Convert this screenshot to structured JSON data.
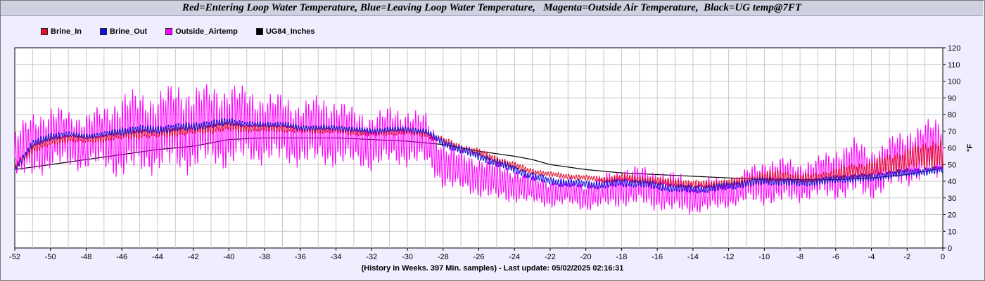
{
  "title": "Red=Entering Loop Water Temperature, Blue=Leaving Loop Water Temperature,   Magenta=Outside Air Temperature,  Black=UG temp@7FT",
  "footer": "(History in Weeks. 397 Min. samples) - Last update: 05/02/2025 02:16:31",
  "chart_data": {
    "type": "line",
    "xlim": [
      -52,
      0
    ],
    "ylim": [
      0,
      120
    ],
    "ylabel": "°F",
    "grid": true,
    "legend_position": "top-left",
    "x_ticks": [
      -52,
      -50,
      -48,
      -46,
      -44,
      -42,
      -40,
      -38,
      -36,
      -34,
      -32,
      -30,
      -28,
      -26,
      -24,
      -22,
      -20,
      -18,
      -16,
      -14,
      -12,
      -10,
      -8,
      -6,
      -4,
      -2,
      0
    ],
    "x_tick_labels": [
      "-52",
      "-50",
      "-48",
      "-46",
      "-44",
      "-42",
      "-40",
      "-38",
      "-36",
      "-34",
      "-32",
      "-30",
      "-28",
      "-26",
      "-24",
      "-22",
      "-20",
      "-18",
      "-16",
      "-14",
      "-12",
      "-10",
      "-8",
      "-6",
      "-4",
      "-2",
      "0"
    ],
    "y_ticks": [
      0,
      10,
      20,
      30,
      40,
      50,
      60,
      70,
      80,
      90,
      100,
      110,
      120
    ],
    "y_tick_labels": [
      "0",
      "10",
      "20",
      "30",
      "40",
      "50",
      "60",
      "70",
      "80",
      "90",
      "100",
      "110",
      "120"
    ],
    "series": [
      {
        "name": "Brine_In",
        "color": "#e0102a",
        "x": [
          -52,
          -51,
          -50,
          -49,
          -48,
          -47,
          -46,
          -45,
          -44,
          -43,
          -42,
          -41,
          -40,
          -39,
          -38,
          -37,
          -36,
          -35,
          -34,
          -33,
          -32,
          -31,
          -30,
          -29,
          -28,
          -27,
          -26,
          -25,
          -24,
          -23,
          -22,
          -21,
          -20,
          -19,
          -18,
          -17,
          -16,
          -15,
          -14,
          -13,
          -12,
          -11,
          -10,
          -9,
          -8,
          -7,
          -6,
          -5,
          -4,
          -3,
          -2,
          -1,
          0
        ],
        "values": [
          48,
          60,
          64,
          66,
          65,
          66,
          68,
          69,
          69,
          70,
          71,
          72,
          73,
          72,
          72,
          72,
          71,
          71,
          71,
          70,
          69,
          70,
          70,
          69,
          64,
          60,
          57,
          53,
          49,
          46,
          44,
          43,
          42,
          41,
          42,
          41,
          40,
          39,
          38,
          38,
          39,
          40,
          42,
          43,
          41,
          42,
          44,
          46,
          47,
          50,
          53,
          55,
          58
        ],
        "swing": [
          3,
          4,
          4,
          3,
          3,
          3,
          4,
          4,
          4,
          4,
          4,
          4,
          4,
          3,
          3,
          3,
          3,
          3,
          3,
          3,
          3,
          3,
          3,
          3,
          3,
          3,
          3,
          3,
          3,
          2,
          2,
          2,
          2,
          2,
          3,
          3,
          3,
          3,
          3,
          3,
          3,
          4,
          5,
          5,
          4,
          4,
          5,
          6,
          7,
          8,
          9,
          10,
          12
        ]
      },
      {
        "name": "Brine_Out",
        "color": "#1010e0",
        "x": [
          -52,
          -51,
          -50,
          -49,
          -48,
          -47,
          -46,
          -45,
          -44,
          -43,
          -42,
          -41,
          -40,
          -39,
          -38,
          -37,
          -36,
          -35,
          -34,
          -33,
          -32,
          -31,
          -30,
          -29,
          -28,
          -27,
          -26,
          -25,
          -24,
          -23,
          -22,
          -21,
          -20,
          -19,
          -18,
          -17,
          -16,
          -15,
          -14,
          -13,
          -12,
          -11,
          -10,
          -9,
          -8,
          -7,
          -6,
          -5,
          -4,
          -3,
          -2,
          -1,
          0
        ],
        "values": [
          47,
          62,
          67,
          68,
          67,
          68,
          70,
          71,
          71,
          72,
          73,
          74,
          76,
          74,
          74,
          74,
          72,
          72,
          72,
          71,
          70,
          71,
          71,
          70,
          63,
          59,
          55,
          51,
          47,
          43,
          40,
          39,
          38,
          38,
          39,
          39,
          37,
          36,
          35,
          36,
          37,
          39,
          40,
          40,
          39,
          40,
          41,
          42,
          42,
          44,
          45,
          46,
          47
        ],
        "swing": [
          2,
          3,
          3,
          2,
          2,
          2,
          3,
          3,
          3,
          3,
          3,
          3,
          3,
          2,
          2,
          2,
          2,
          2,
          2,
          2,
          2,
          2,
          2,
          2,
          3,
          3,
          3,
          3,
          3,
          3,
          3,
          3,
          3,
          3,
          3,
          3,
          3,
          3,
          3,
          3,
          3,
          3,
          3,
          3,
          3,
          3,
          3,
          3,
          3,
          3,
          3,
          3,
          3
        ]
      },
      {
        "name": "Outside_Airtemp",
        "color": "#ff00ff",
        "x": [
          -52,
          -51,
          -50,
          -49,
          -48,
          -47,
          -46,
          -45,
          -44,
          -43,
          -42,
          -41,
          -40,
          -39,
          -38,
          -37,
          -36,
          -35,
          -34,
          -33,
          -32,
          -31,
          -30,
          -29,
          -28,
          -27,
          -26,
          -25,
          -24,
          -23,
          -22,
          -21,
          -20,
          -19,
          -18,
          -17,
          -16,
          -15,
          -14,
          -13,
          -12,
          -11,
          -10,
          -9,
          -8,
          -7,
          -6,
          -5,
          -4,
          -3,
          -2,
          -1,
          0
        ],
        "values": [
          55,
          62,
          66,
          65,
          64,
          66,
          68,
          69,
          70,
          72,
          72,
          73,
          74,
          73,
          72,
          71,
          69,
          70,
          70,
          66,
          64,
          67,
          67,
          65,
          50,
          46,
          43,
          40,
          38,
          35,
          33,
          34,
          31,
          34,
          37,
          37,
          35,
          33,
          31,
          32,
          33,
          37,
          40,
          40,
          40,
          42,
          45,
          48,
          45,
          50,
          55,
          58,
          60
        ],
        "swing": [
          18,
          22,
          22,
          20,
          20,
          22,
          30,
          28,
          28,
          30,
          30,
          28,
          30,
          26,
          24,
          24,
          22,
          24,
          24,
          20,
          20,
          20,
          20,
          18,
          16,
          14,
          14,
          14,
          12,
          10,
          10,
          10,
          10,
          12,
          14,
          14,
          14,
          14,
          12,
          12,
          10,
          12,
          16,
          16,
          14,
          14,
          18,
          20,
          18,
          18,
          20,
          20,
          22
        ]
      },
      {
        "name": "UG84_Inches",
        "color": "#000000",
        "x": [
          -52,
          -50,
          -48,
          -46,
          -44,
          -42,
          -40,
          -38,
          -36,
          -34,
          -32,
          -30,
          -28,
          -26,
          -24,
          -23,
          -22,
          -20,
          -18,
          -16,
          -14,
          -12,
          -10,
          -8,
          -6,
          -4,
          -2,
          0
        ],
        "values": [
          47,
          50,
          53,
          56,
          59,
          61,
          65,
          66,
          66,
          66,
          65,
          64,
          62,
          58,
          55,
          53,
          50,
          47,
          45,
          44,
          43,
          42,
          41,
          41,
          41,
          42,
          44,
          48
        ],
        "swing": [
          0,
          0,
          0,
          0,
          0,
          0,
          0,
          0,
          0,
          0,
          0,
          0,
          0,
          0,
          0,
          0,
          0,
          0,
          0,
          0,
          0,
          0,
          0,
          0,
          0,
          0,
          0,
          0
        ]
      }
    ]
  }
}
